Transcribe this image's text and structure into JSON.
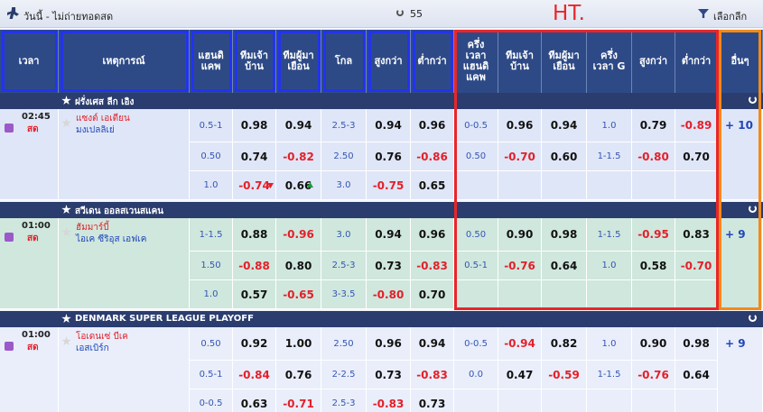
{
  "topbar": {
    "title": "วันนี้ - ไม่ถ่ายทอดสด",
    "count": 55,
    "select_league": "เลือกลีก",
    "annotation": "HT."
  },
  "table": {
    "header": [
      [
        "เวลา"
      ],
      [
        "เหตุการณ์"
      ],
      [
        "แฮนดิ",
        "แคพ"
      ],
      [
        "ทีมเจ้า",
        "บ้าน"
      ],
      [
        "ทีมผู้มา",
        "เยือน"
      ],
      [
        "โกล"
      ],
      [
        "สูงกว่า"
      ],
      [
        "ต่ำกว่า"
      ],
      [
        "ครึ่ง",
        "เวลา",
        "แฮนดิ",
        "แคพ"
      ],
      [
        "ทีมเจ้า",
        "บ้าน"
      ],
      [
        "ทีมผู้มา",
        "เยือน"
      ],
      [
        "ครึ่ง",
        "เวลา G"
      ],
      [
        "สูงกว่า"
      ],
      [
        "ต่ำกว่า"
      ],
      [
        "อื่นๆ"
      ]
    ],
    "leagues": [
      {
        "name": "ฝรั่งเศส ลีก เอิง",
        "match": {
          "time": "02:45",
          "status": "สด",
          "home": "แซงต์ เอเตียน",
          "away": "มงเปลลิเย่",
          "more": "+ 10",
          "lines": [
            {
              "ft": [
                "0.5-1",
                "0.98",
                "0.94",
                "2.5-3",
                "0.94",
                "0.96"
              ],
              "ht": [
                "0-0.5",
                "0.96",
                "0.94",
                "1.0",
                "0.79",
                "-0.89"
              ]
            },
            {
              "ft": [
                "0.50",
                "0.74",
                "-0.82",
                "2.50",
                "0.76",
                "-0.86"
              ],
              "ht": [
                "0.50",
                "-0.70",
                "0.60",
                "1-1.5",
                "-0.80",
                "0.70"
              ]
            },
            {
              "ft": [
                "1.0",
                "-0.74",
                "0.66",
                "3.0",
                "-0.75",
                "0.65"
              ]
            }
          ]
        }
      },
      {
        "name": "สวีเดน ออลสเวนสแคน",
        "match": {
          "time": "01:00",
          "status": "สด",
          "home": "ฮัมมาร์บี้",
          "away": "ไอเค ซีริอุส เอฟเค",
          "more": "+ 9",
          "lines": [
            {
              "ft": [
                "1-1.5",
                "0.88",
                "-0.96",
                "3.0",
                "0.94",
                "0.96"
              ],
              "ht": [
                "0.50",
                "0.90",
                "0.98",
                "1-1.5",
                "-0.95",
                "0.83"
              ]
            },
            {
              "ft": [
                "1.50",
                "-0.88",
                "0.80",
                "2.5-3",
                "0.73",
                "-0.83"
              ],
              "ht": [
                "0.5-1",
                "-0.76",
                "0.64",
                "1.0",
                "0.58",
                "-0.70"
              ]
            },
            {
              "ft": [
                "1.0",
                "0.57",
                "-0.65",
                "3-3.5",
                "-0.80",
                "0.70"
              ]
            }
          ]
        }
      },
      {
        "name": "DENMARK SUPER LEAGUE PLAYOFF",
        "match": {
          "time": "01:00",
          "status": "สด",
          "home": "โอเดนเซ่ บีเค",
          "away": "เอสเบิร์ก",
          "more": "+ 9",
          "lines": [
            {
              "ft": [
                "0.50",
                "0.92",
                "1.00",
                "2.50",
                "0.96",
                "0.94"
              ],
              "ht": [
                "0-0.5",
                "-0.94",
                "0.82",
                "1.0",
                "0.90",
                "0.98"
              ]
            },
            {
              "ft": [
                "0.5-1",
                "-0.84",
                "0.76",
                "2-2.5",
                "0.73",
                "-0.83"
              ],
              "ht": [
                "0.0",
                "0.47",
                "-0.59",
                "1-1.5",
                "-0.76",
                "0.64"
              ]
            },
            {
              "ft": [
                "0-0.5",
                "0.63",
                "-0.71",
                "2.5-3",
                "-0.83",
                "0.73"
              ]
            }
          ]
        }
      }
    ]
  }
}
